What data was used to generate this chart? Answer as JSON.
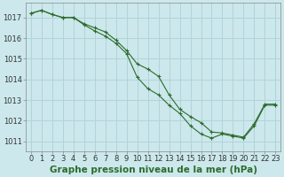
{
  "title": "Graphe pression niveau de la mer (hPa)",
  "background_color": "#cce8ec",
  "grid_color": "#b0d4d8",
  "line_color": "#2d6b2d",
  "xlim": [
    -0.5,
    23.5
  ],
  "ylim": [
    1010.5,
    1017.7
  ],
  "yticks": [
    1011,
    1012,
    1013,
    1014,
    1015,
    1016,
    1017
  ],
  "xticks": [
    0,
    1,
    2,
    3,
    4,
    5,
    6,
    7,
    8,
    9,
    10,
    11,
    12,
    13,
    14,
    15,
    16,
    17,
    18,
    19,
    20,
    21,
    22,
    23
  ],
  "series1": [
    1017.2,
    1017.35,
    1017.15,
    1017.0,
    1017.0,
    1016.7,
    1016.5,
    1016.3,
    1015.9,
    1015.4,
    1014.75,
    1014.5,
    1014.15,
    1013.25,
    1012.55,
    1012.2,
    1011.9,
    1011.45,
    1011.4,
    1011.3,
    1011.2,
    1011.85,
    1012.8,
    1012.8
  ],
  "series2": [
    1017.2,
    1017.35,
    1017.15,
    1017.0,
    1017.0,
    1016.65,
    1016.35,
    1016.1,
    1015.75,
    1015.25,
    1014.1,
    1013.55,
    1013.25,
    1012.75,
    1012.35,
    1011.75,
    1011.35,
    1011.15,
    1011.35,
    1011.25,
    1011.15,
    1011.75,
    1012.75,
    1012.75
  ],
  "title_fontsize": 7.5,
  "tick_fontsize": 6.0
}
